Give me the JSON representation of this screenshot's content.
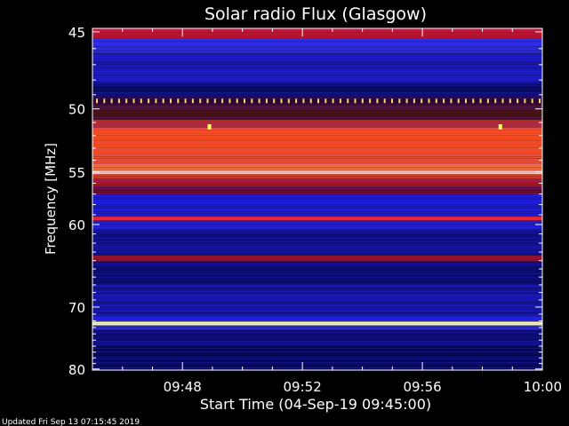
{
  "chart_data": {
    "type": "heatmap",
    "title": "Solar radio Flux (Glasgow)",
    "xlabel": "Start Time (04-Sep-19 09:45:00)",
    "ylabel": "Frequency [MHz]",
    "x_ticks": [
      "09:48",
      "09:52",
      "09:56",
      "10:00"
    ],
    "x_tick_minutes": [
      3,
      7,
      11,
      15
    ],
    "x_range_minutes": [
      0,
      15
    ],
    "y_ticks": [
      45,
      50,
      55,
      60,
      70,
      80
    ],
    "y_range_mhz": [
      44.8,
      80.2
    ],
    "y_scale": "reciprocal",
    "bands": [
      {
        "from": 44.8,
        "to": 45.4,
        "color": "#d01030"
      },
      {
        "from": 45.4,
        "to": 46.3,
        "color": "#2a2ae8"
      },
      {
        "from": 46.3,
        "to": 48.2,
        "color": "#1818b8"
      },
      {
        "from": 48.2,
        "to": 49.1,
        "color": "#0a0a70"
      },
      {
        "from": 49.1,
        "to": 49.7,
        "color": "#300838"
      },
      {
        "from": 49.7,
        "to": 50.8,
        "color": "#501018"
      },
      {
        "from": 50.8,
        "to": 51.4,
        "color": "#c02818"
      },
      {
        "from": 51.4,
        "to": 54.3,
        "color": "#ff4a1c"
      },
      {
        "from": 54.3,
        "to": 54.9,
        "color": "#ff6a30"
      },
      {
        "from": 54.9,
        "to": 55.2,
        "color": "#ffc898"
      },
      {
        "from": 55.2,
        "to": 55.6,
        "color": "#e63a1c"
      },
      {
        "from": 55.6,
        "to": 56.3,
        "color": "#b8141c"
      },
      {
        "from": 56.3,
        "to": 57.1,
        "color": "#700a34"
      },
      {
        "from": 57.1,
        "to": 59.2,
        "color": "#1a1ad8"
      },
      {
        "from": 59.2,
        "to": 59.6,
        "color": "#ff2020"
      },
      {
        "from": 59.6,
        "to": 60.6,
        "color": "#1c1cc8"
      },
      {
        "from": 60.6,
        "to": 63.4,
        "color": "#10108c"
      },
      {
        "from": 63.4,
        "to": 64.1,
        "color": "#a81030"
      },
      {
        "from": 64.1,
        "to": 67.0,
        "color": "#0c0c80"
      },
      {
        "from": 67.0,
        "to": 71.2,
        "color": "#1414a4"
      },
      {
        "from": 71.2,
        "to": 72.1,
        "color": "#2020e0"
      },
      {
        "from": 72.1,
        "to": 72.7,
        "color": "#ffffa0"
      },
      {
        "from": 72.7,
        "to": 73.4,
        "color": "#2a2af0"
      },
      {
        "from": 73.4,
        "to": 76.0,
        "color": "#0c0c78"
      },
      {
        "from": 76.0,
        "to": 80.2,
        "color": "#080860"
      }
    ],
    "dotted_line_mhz": 49.4,
    "dotted_color": "#ffd070",
    "hot_spots": [
      {
        "minute": 3.9,
        "mhz": 51.4
      },
      {
        "minute": 13.6,
        "mhz": 51.4
      }
    ],
    "colors": {
      "background": "#000000",
      "text": "#ffffff"
    }
  },
  "footer": {
    "updated": "Updated Fri Sep 13 07:15:45 2019"
  }
}
